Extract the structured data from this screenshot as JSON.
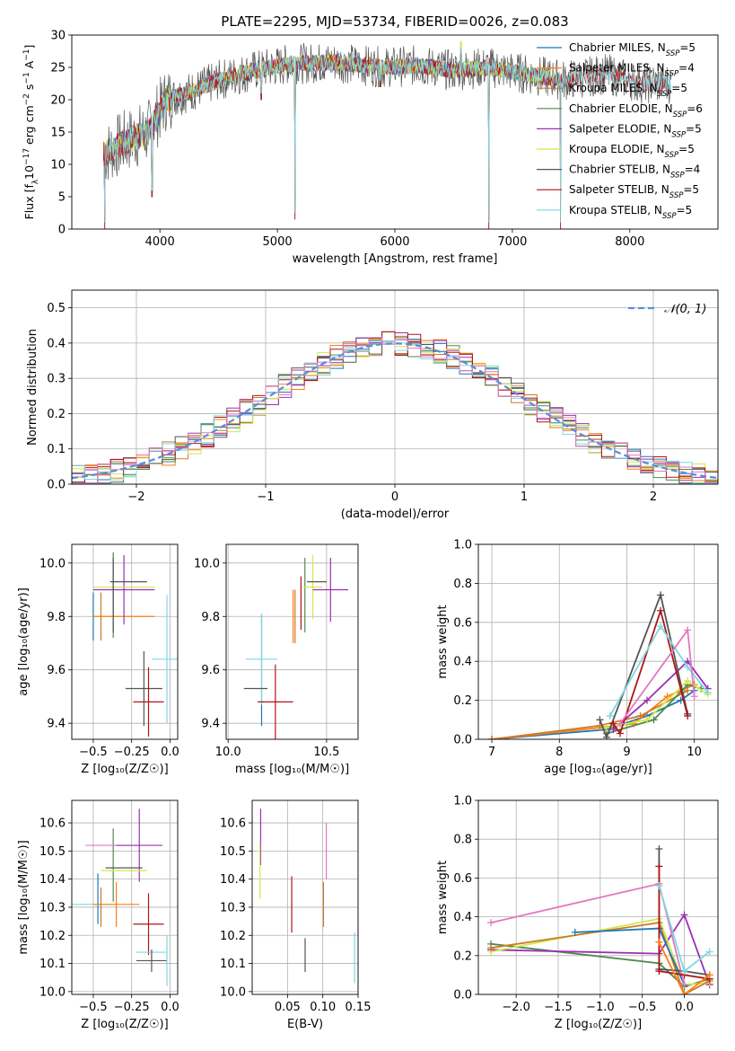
{
  "figure_title": "PLATE=2295, MJD=53734, FIBERID=0026, z=0.083",
  "colors": {
    "Chabrier MILES": "#1f77b4",
    "Salpeter MILES": "#ff7f0e",
    "Kroupa MILES": "#cc7a2a",
    "Chabrier ELODIE": "#4f8a4f",
    "Salpeter ELODIE": "#9b30b0",
    "Kroupa ELODIE": "#d4e84a",
    "Chabrier STELIB": "#555555",
    "Salpeter STELIB": "#b01515",
    "Kroupa STELIB": "#7fd8e0",
    "Pink": "#e377c2",
    "Normal": "#5b8fd6"
  },
  "chart_data": [
    {
      "id": "spectrum",
      "type": "line",
      "xlabel": "wavelength [Angstrom, rest frame]",
      "ylabel_parts": [
        "Flux [f",
        "λ",
        "10",
        "−17",
        " erg cm",
        "−2",
        " s",
        "−1",
        " A",
        "−1",
        "]"
      ],
      "xlim": [
        3250,
        8750
      ],
      "ylim": [
        0,
        30
      ],
      "xticks": [
        4000,
        5000,
        6000,
        7000,
        8000
      ],
      "yticks": [
        0,
        5,
        10,
        15,
        20,
        25,
        30
      ],
      "legend": [
        {
          "name": "Chabrier MILES",
          "label": "Chabrier MILES, N",
          "sub": "SSP",
          "n": "=5"
        },
        {
          "name": "Salpeter MILES",
          "label": "Salpeter MILES, N",
          "sub": "SSP",
          "n": "=4"
        },
        {
          "name": "Kroupa MILES",
          "label": "Kroupa MILES, N",
          "sub": "SSP",
          "n": "=5"
        },
        {
          "name": "Chabrier ELODIE",
          "label": "Chabrier ELODIE, N",
          "sub": "SSP",
          "n": "=6"
        },
        {
          "name": "Salpeter ELODIE",
          "label": "Salpeter ELODIE, N",
          "sub": "SSP",
          "n": "=5"
        },
        {
          "name": "Kroupa ELODIE",
          "label": "Kroupa ELODIE, N",
          "sub": "SSP",
          "n": "=5"
        },
        {
          "name": "Chabrier STELIB",
          "label": "Chabrier STELIB, N",
          "sub": "SSP",
          "n": "=4"
        },
        {
          "name": "Salpeter STELIB",
          "label": "Salpeter STELIB, N",
          "sub": "SSP",
          "n": "=5"
        },
        {
          "name": "Kroupa STELIB",
          "label": "Kroupa STELIB, N",
          "sub": "SSP",
          "n": "=5"
        }
      ],
      "continuum": [
        [
          3520,
          11.5
        ],
        [
          3700,
          13.5
        ],
        [
          3900,
          15
        ],
        [
          4050,
          20
        ],
        [
          4300,
          21.5
        ],
        [
          4500,
          23
        ],
        [
          4800,
          24.5
        ],
        [
          5100,
          25.5
        ],
        [
          5500,
          25.8
        ],
        [
          5900,
          25
        ],
        [
          6200,
          25.3
        ],
        [
          6500,
          24.5
        ],
        [
          6800,
          25
        ],
        [
          7100,
          24
        ],
        [
          7450,
          23
        ],
        [
          7800,
          24
        ],
        [
          8100,
          22.5
        ],
        [
          8350,
          22.5
        ]
      ],
      "dips": [
        [
          3934,
          5
        ],
        [
          4861,
          20
        ],
        [
          5150,
          1.5
        ],
        [
          5876,
          22
        ],
        [
          6563,
          27
        ],
        [
          6800,
          0
        ],
        [
          7410,
          0
        ],
        [
          3530,
          0
        ]
      ]
    },
    {
      "id": "residuals",
      "type": "line",
      "xlabel": "(data-model)/error",
      "ylabel": "Normed distribution",
      "xlim": [
        -2.5,
        2.5
      ],
      "ylim": [
        0,
        0.55
      ],
      "xticks": [
        -2,
        -1,
        0,
        1,
        2
      ],
      "xticklabels": [
        "−2",
        "−1",
        "0",
        "1",
        "2"
      ],
      "yticks": [
        0,
        0.1,
        0.2,
        0.3,
        0.4,
        0.5
      ],
      "legend": [
        {
          "name": "Normal",
          "label": "𝒩(0, 1)"
        }
      ],
      "gaussian": {
        "mean": 0,
        "sigma": 1
      },
      "series_names": [
        "Chabrier MILES",
        "Salpeter MILES",
        "Kroupa MILES",
        "Chabrier ELODIE",
        "Salpeter ELODIE",
        "Kroupa ELODIE",
        "Chabrier STELIB",
        "Salpeter STELIB",
        "Kroupa STELIB",
        "Pink"
      ]
    },
    {
      "id": "z_age",
      "type": "scatter",
      "xlabel": "Z [log₁₀(Z/Z☉)]",
      "ylabel": "age  [log₁₀(age/yr)]",
      "xlim": [
        -0.64,
        0.05
      ],
      "ylim": [
        9.34,
        10.07
      ],
      "xticks": [
        -0.5,
        -0.25,
        0
      ],
      "xticklabels": [
        "−0.5",
        "−0.25",
        "0.0"
      ],
      "yticks": [
        9.4,
        9.6,
        9.8,
        10.0
      ],
      "points": [
        {
          "name": "Chabrier MILES",
          "x": -0.5,
          "y": 9.8,
          "xerr": 0,
          "yerr": 0.09
        },
        {
          "name": "Salpeter MILES",
          "x": -0.3,
          "y": 9.8,
          "xerr": 0.2,
          "yerr": 0
        },
        {
          "name": "Kroupa MILES",
          "x": -0.45,
          "y": 9.8,
          "xerr": 0,
          "yerr": 0.09
        },
        {
          "name": "Chabrier ELODIE",
          "x": -0.37,
          "y": 9.88,
          "xerr": 0,
          "yerr": 0.16
        },
        {
          "name": "Salpeter ELODIE",
          "x": -0.3,
          "y": 9.9,
          "xerr": 0.2,
          "yerr": 0.13
        },
        {
          "name": "Kroupa ELODIE",
          "x": -0.3,
          "y": 9.91,
          "xerr": 0.2,
          "yerr": 0
        },
        {
          "name": "Chabrier STELIB",
          "x": -0.27,
          "y": 9.93,
          "xerr": 0.12,
          "yerr": 0
        },
        {
          "name": "Chabrier STELIB",
          "x": -0.17,
          "y": 9.53,
          "xerr": 0.12,
          "yerr": 0.14
        },
        {
          "name": "Salpeter STELIB",
          "x": -0.14,
          "y": 9.48,
          "xerr": 0.1,
          "yerr": 0.13
        },
        {
          "name": "Kroupa STELIB",
          "x": -0.02,
          "y": 9.64,
          "xerr": 0.1,
          "yerr": 0.24
        },
        {
          "name": "Chabrier STELIB",
          "x": -0.37,
          "y": 9.88,
          "xerr": 0,
          "yerr": 0.14
        }
      ]
    },
    {
      "id": "mass_age",
      "type": "scatter",
      "xlabel": "mass [log₁₀(M/M☉)]",
      "ylabel": "",
      "xlim": [
        9.99,
        10.66
      ],
      "ylim": [
        9.34,
        10.07
      ],
      "xticks": [
        10.0,
        10.5
      ],
      "xticklabels": [
        "10.0",
        "10.5"
      ],
      "yticks": [
        9.4,
        9.6,
        9.8,
        10.0
      ],
      "points": [
        {
          "name": "Chabrier MILES",
          "x": 10.17,
          "y": 9.6,
          "xerr": 0,
          "yerr": 0.21
        },
        {
          "name": "Kroupa STELIB",
          "x": 10.17,
          "y": 9.64,
          "xerr": 0.08,
          "yerr": 0.17
        },
        {
          "name": "Chabrier STELIB",
          "x": 10.14,
          "y": 9.53,
          "xerr": 0.06,
          "yerr": 0
        },
        {
          "name": "Salpeter STELIB",
          "x": 10.24,
          "y": 9.48,
          "xerr": 0.09,
          "yerr": 0.14
        },
        {
          "name": "Kroupa MILES",
          "x": 10.34,
          "y": 9.8,
          "xerr": 0,
          "yerr": 0.1
        },
        {
          "name": "Chabrier ELODIE",
          "x": 10.39,
          "y": 9.88,
          "xerr": 0,
          "yerr": 0.14
        },
        {
          "name": "Kroupa ELODIE",
          "x": 10.43,
          "y": 9.91,
          "xerr": 0.05,
          "yerr": 0.12
        },
        {
          "name": "Chabrier STELIB",
          "x": 10.45,
          "y": 9.93,
          "xerr": 0.05,
          "yerr": 0
        },
        {
          "name": "Salpeter ELODIE",
          "x": 10.52,
          "y": 9.9,
          "xerr": 0.09,
          "yerr": 0.12
        },
        {
          "name": "Salpeter MILES",
          "x": 10.33,
          "y": 9.8,
          "xerr": 0,
          "yerr": 0.1
        },
        {
          "name": "Salpeter STELIB",
          "x": 10.37,
          "y": 9.85,
          "xerr": 0,
          "yerr": 0.1
        }
      ]
    },
    {
      "id": "age_weight",
      "type": "line",
      "xlabel": "age  [log₁₀(age/yr)]",
      "ylabel": "mass weight",
      "xlim": [
        6.8,
        10.35
      ],
      "ylim": [
        0,
        1
      ],
      "xticks": [
        7,
        8,
        9,
        10
      ],
      "yticks": [
        0,
        0.2,
        0.4,
        0.6,
        0.8,
        1.0
      ],
      "yticklabels": [
        "0.0",
        "0.2",
        "0.4",
        "0.6",
        "0.8",
        "1.0"
      ],
      "series": [
        {
          "name": "Chabrier MILES",
          "x": [
            7,
            8.7,
            9.3,
            9.8,
            10
          ],
          "y": [
            0,
            0.05,
            0.12,
            0.2,
            0.25
          ]
        },
        {
          "name": "Salpeter MILES",
          "x": [
            7,
            8.6,
            9.1,
            9.6,
            10
          ],
          "y": [
            0,
            0.06,
            0.08,
            0.22,
            0.28
          ]
        },
        {
          "name": "Kroupa MILES",
          "x": [
            7,
            8.6,
            9.2,
            9.9
          ],
          "y": [
            0,
            0.07,
            0.12,
            0.25
          ]
        },
        {
          "name": "Chabrier ELODIE",
          "x": [
            8.7,
            9.4,
            9.9,
            10.1
          ],
          "y": [
            0.03,
            0.1,
            0.28,
            0.26
          ]
        },
        {
          "name": "Salpeter ELODIE",
          "x": [
            8.8,
            9.3,
            9.9,
            10.2
          ],
          "y": [
            0.05,
            0.2,
            0.4,
            0.26
          ]
        },
        {
          "name": "Kroupa ELODIE",
          "x": [
            8.7,
            9.3,
            9.9,
            10.2
          ],
          "y": [
            0.06,
            0.1,
            0.3,
            0.23
          ]
        },
        {
          "name": "Chabrier STELIB",
          "x": [
            8.6,
            8.7,
            9.5,
            9.9
          ],
          "y": [
            0.1,
            0.01,
            0.74,
            0.13
          ]
        },
        {
          "name": "Salpeter STELIB",
          "x": [
            8.8,
            8.9,
            9.5,
            9.9
          ],
          "y": [
            0.08,
            0.03,
            0.66,
            0.12
          ]
        },
        {
          "name": "Kroupa STELIB",
          "x": [
            8.75,
            9.5,
            9.9,
            10.2
          ],
          "y": [
            0.12,
            0.58,
            0.37,
            0.24
          ]
        },
        {
          "name": "Pink",
          "x": [
            8.9,
            9.9,
            10
          ],
          "y": [
            0.08,
            0.56,
            0.22
          ]
        }
      ]
    },
    {
      "id": "z_mass",
      "type": "scatter",
      "xlabel": "Z [log₁₀(Z/Z☉)]",
      "ylabel": "mass [log₁₀(M/M☉)]",
      "xlim": [
        -0.64,
        0.05
      ],
      "ylim": [
        9.99,
        10.68
      ],
      "xticks": [
        -0.5,
        -0.25,
        0
      ],
      "xticklabels": [
        "−0.5",
        "−0.25",
        "0.0"
      ],
      "yticks": [
        10.0,
        10.1,
        10.2,
        10.3,
        10.4,
        10.5,
        10.6
      ],
      "points": [
        {
          "name": "Chabrier MILES",
          "x": -0.47,
          "y": 10.33,
          "xerr": 0,
          "yerr": 0.09
        },
        {
          "name": "Kroupa STELIB",
          "x": -0.5,
          "y": 10.31,
          "xerr": 0.14,
          "yerr": 0
        },
        {
          "name": "Salpeter MILES",
          "x": -0.35,
          "y": 10.31,
          "xerr": 0.15,
          "yerr": 0.08
        },
        {
          "name": "Kroupa MILES",
          "x": -0.45,
          "y": 10.3,
          "xerr": 0,
          "yerr": 0.07
        },
        {
          "name": "Chabrier ELODIE",
          "x": -0.37,
          "y": 10.45,
          "xerr": 0,
          "yerr": 0.13
        },
        {
          "name": "Pink",
          "x": -0.37,
          "y": 10.52,
          "xerr": 0.18,
          "yerr": 0
        },
        {
          "name": "Salpeter ELODIE",
          "x": -0.2,
          "y": 10.52,
          "xerr": 0.15,
          "yerr": 0.13
        },
        {
          "name": "Kroupa ELODIE",
          "x": -0.3,
          "y": 10.43,
          "xerr": 0.15,
          "yerr": 0
        },
        {
          "name": "Chabrier STELIB",
          "x": -0.3,
          "y": 10.44,
          "xerr": 0.12,
          "yerr": 0
        },
        {
          "name": "Salpeter STELIB",
          "x": -0.14,
          "y": 10.24,
          "xerr": 0.1,
          "yerr": 0.11
        },
        {
          "name": "Kroupa STELIB",
          "x": -0.12,
          "y": 10.14,
          "xerr": 0.1,
          "yerr": 0
        },
        {
          "name": "Chabrier STELIB",
          "x": -0.12,
          "y": 10.11,
          "xerr": 0.1,
          "yerr": 0.04
        },
        {
          "name": "Kroupa STELIB",
          "x": -0.02,
          "y": 10.11,
          "xerr": 0,
          "yerr": 0.09
        }
      ]
    },
    {
      "id": "ebv_mass",
      "type": "scatter",
      "xlabel": "E(B-V)",
      "ylabel": "",
      "xlim": [
        0.0,
        0.15
      ],
      "ylim": [
        9.99,
        10.68
      ],
      "xticks": [
        0.05,
        0.1,
        0.15
      ],
      "xticklabels": [
        "0.05",
        "0.10",
        "0.15"
      ],
      "yticks": [
        10.0,
        10.1,
        10.2,
        10.3,
        10.4,
        10.5,
        10.6
      ],
      "points": [
        {
          "name": "Salpeter ELODIE",
          "x": 0.012,
          "y": 10.55,
          "xerr": 0,
          "yerr": 0.1
        },
        {
          "name": "Kroupa ELODIE",
          "x": 0.011,
          "y": 10.43,
          "xerr": 0,
          "yerr": 0.1
        },
        {
          "name": "Salpeter STELIB",
          "x": 0.056,
          "y": 10.31,
          "xerr": 0,
          "yerr": 0.1
        },
        {
          "name": "Chabrier STELIB",
          "x": 0.075,
          "y": 10.13,
          "xerr": 0,
          "yerr": 0.06
        },
        {
          "name": "Kroupa MILES",
          "x": 0.101,
          "y": 10.31,
          "xerr": 0,
          "yerr": 0.08
        },
        {
          "name": "Pink",
          "x": 0.105,
          "y": 10.5,
          "xerr": 0,
          "yerr": 0.1
        },
        {
          "name": "Kroupa STELIB",
          "x": 0.145,
          "y": 10.12,
          "xerr": 0,
          "yerr": 0.09
        }
      ]
    },
    {
      "id": "z_weight",
      "type": "line",
      "xlabel": "Z [log₁₀(Z/Z☉)]",
      "ylabel": "mass weight",
      "xlim": [
        -2.45,
        0.4
      ],
      "ylim": [
        0,
        1
      ],
      "xticks": [
        -2,
        -1.5,
        -1,
        -0.5,
        0
      ],
      "xticklabels": [
        "−2.0",
        "−1.5",
        "−1.0",
        "−0.5",
        "0.0"
      ],
      "yticks": [
        0,
        0.2,
        0.4,
        0.6,
        0.8,
        1.0
      ],
      "yticklabels": [
        "0.0",
        "0.2",
        "0.4",
        "0.6",
        "0.8",
        "1.0"
      ],
      "series": [
        {
          "name": "Chabrier ELODIE",
          "x": [
            -2.3,
            -0.3,
            0,
            0.3
          ],
          "y": [
            0.26,
            0.16,
            0.04,
            0.08
          ]
        },
        {
          "name": "Salpeter ELODIE",
          "x": [
            -2.3,
            -0.3,
            0,
            0.3
          ],
          "y": [
            0.23,
            0.21,
            0.41,
            0.05
          ]
        },
        {
          "name": "Kroupa ELODIE",
          "x": [
            -2.3,
            -0.3,
            0,
            0.3
          ],
          "y": [
            0.22,
            0.39,
            0.05,
            0.06
          ]
        },
        {
          "name": "Kroupa MILES",
          "x": [
            -2.3,
            -0.3,
            0,
            0.3
          ],
          "y": [
            0.24,
            0.37,
            0,
            0.07
          ]
        },
        {
          "name": "Chabrier MILES",
          "x": [
            -1.3,
            -0.3,
            0
          ],
          "y": [
            0.32,
            0.34,
            0.05
          ]
        },
        {
          "name": "Pink",
          "x": [
            -2.3,
            -0.3,
            0
          ],
          "y": [
            0.37,
            0.57,
            0.05
          ]
        },
        {
          "name": "Chabrier STELIB",
          "x": [
            -0.3,
            -0.3,
            0,
            0.3
          ],
          "y": [
            0.75,
            0.13,
            0.12,
            0.1
          ]
        },
        {
          "name": "Salpeter STELIB",
          "x": [
            -0.3,
            -0.3,
            0,
            0.3
          ],
          "y": [
            0.66,
            0.12,
            0.1,
            0.08
          ]
        },
        {
          "name": "Kroupa STELIB",
          "x": [
            -0.3,
            0,
            0.3
          ],
          "y": [
            0.56,
            0.12,
            0.22
          ]
        },
        {
          "name": "Salpeter MILES",
          "x": [
            -0.3,
            0,
            0.3
          ],
          "y": [
            0.27,
            0,
            0.1
          ]
        }
      ]
    }
  ]
}
